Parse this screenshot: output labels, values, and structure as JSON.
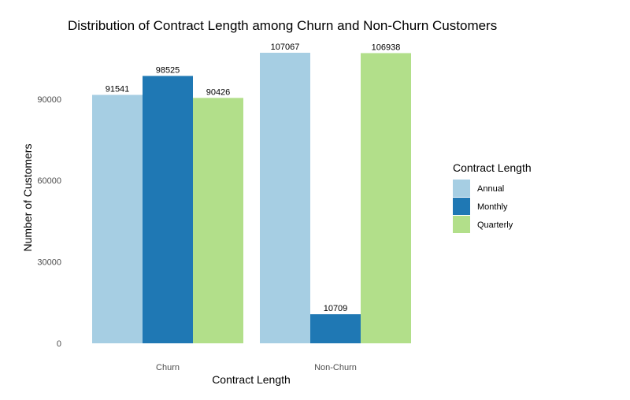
{
  "chart_data": {
    "type": "bar",
    "title": "Distribution of Contract Length among Churn and Non-Churn Customers",
    "xlabel": "Contract Length",
    "ylabel": "Number of Customers",
    "categories": [
      "Churn",
      "Non-Churn"
    ],
    "series": [
      {
        "name": "Annual",
        "color": "#a6cee3",
        "values": [
          91541,
          107067
        ]
      },
      {
        "name": "Monthly",
        "color": "#1f78b4",
        "values": [
          98525,
          10709
        ]
      },
      {
        "name": "Quarterly",
        "color": "#b2df8a",
        "values": [
          90426,
          106938
        ]
      }
    ],
    "yticks": [
      0,
      30000,
      60000,
      90000
    ],
    "ylim": [
      0,
      107067
    ],
    "legend": {
      "title": "Contract Length",
      "position": "right"
    }
  }
}
